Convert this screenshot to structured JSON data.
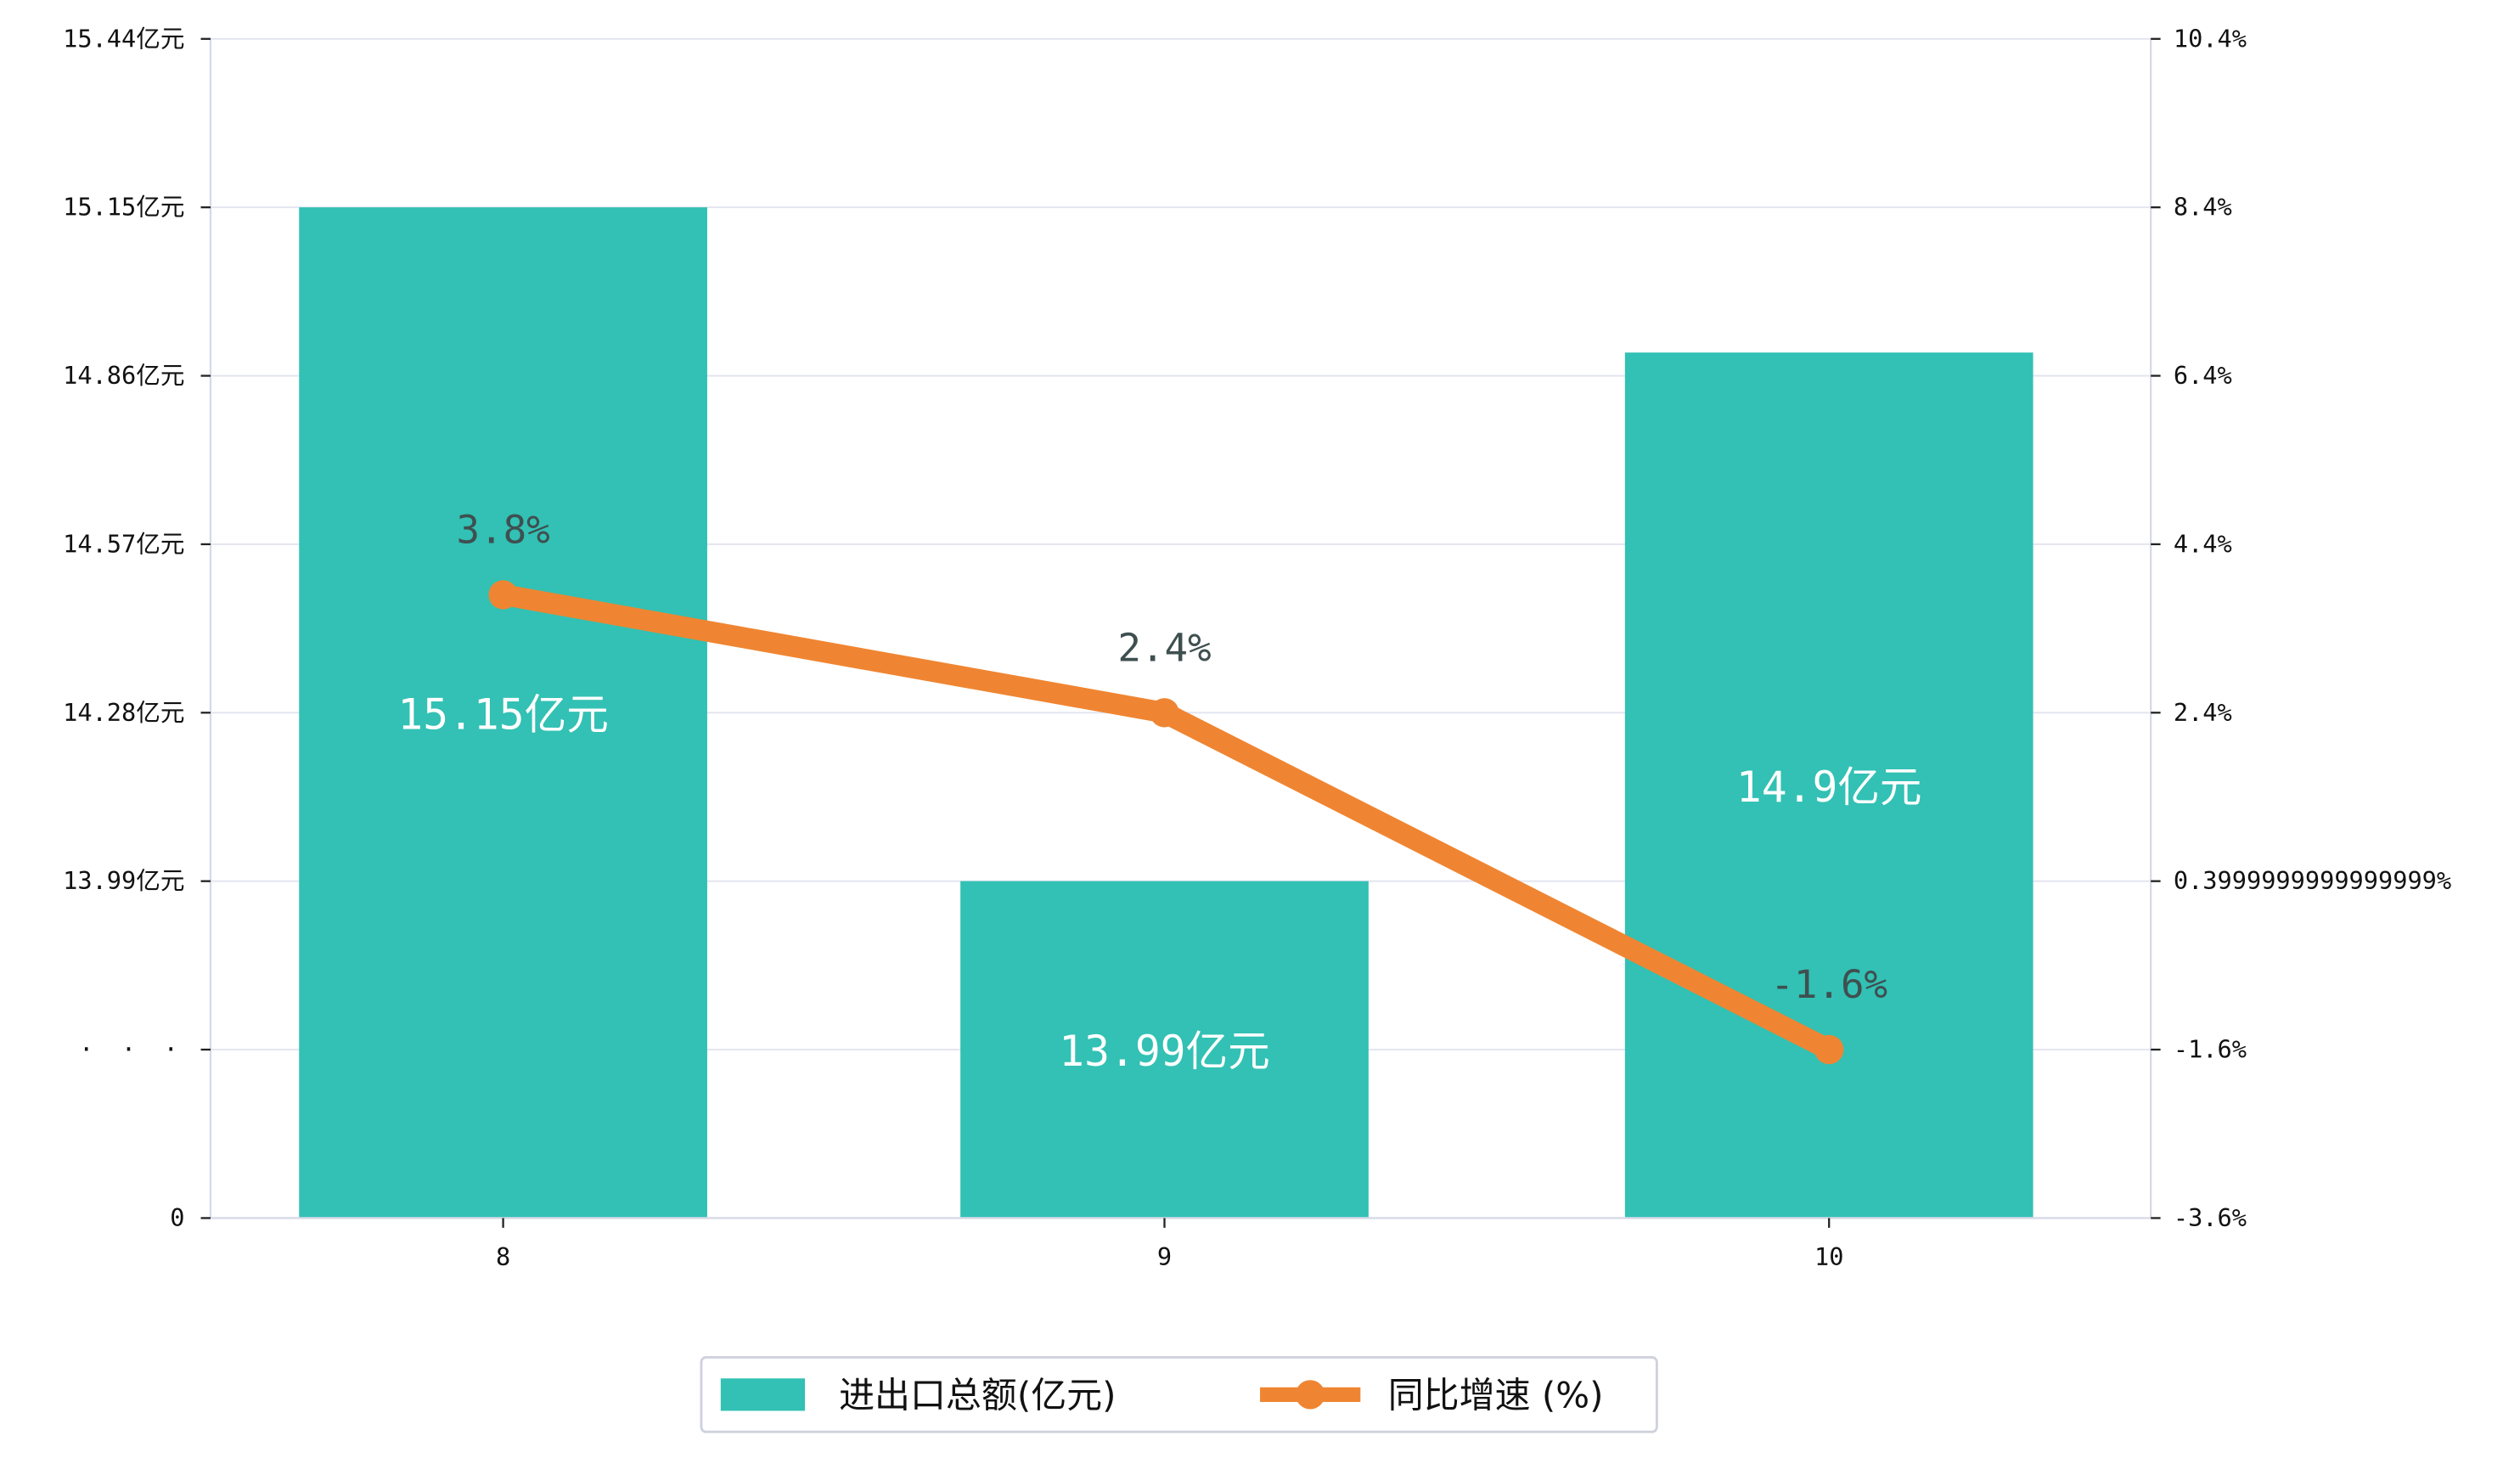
{
  "chart_data": {
    "type": "bar",
    "categories": [
      "8",
      "9",
      "10"
    ],
    "series": [
      {
        "name": "进出口总额(亿元)",
        "type": "bar",
        "axis": "left",
        "values": [
          15.15,
          13.99,
          14.9
        ],
        "value_labels": [
          "15.15亿元",
          "13.99亿元",
          "14.9亿元"
        ],
        "color": "#32c1b4"
      },
      {
        "name": "同比增速 (%)",
        "type": "line",
        "axis": "right",
        "values": [
          3.8,
          2.4,
          -1.6
        ],
        "value_labels": [
          "3.8%",
          "2.4%",
          "-1.6%"
        ],
        "color": "#ef8532"
      }
    ],
    "left_axis": {
      "ticks": [
        "0",
        "· · ·",
        "13.99亿元",
        "14.28亿元",
        "14.57亿元",
        "14.86亿元",
        "15.15亿元",
        "15.44亿元"
      ],
      "broken": true,
      "break_value": 13.7,
      "range": [
        13.7,
        15.44
      ]
    },
    "right_axis": {
      "ticks": [
        "-3.6%",
        "-1.6%",
        "0.3999999999999999%",
        "2.4%",
        "4.4%",
        "6.4%",
        "8.4%",
        "10.4%"
      ],
      "range": [
        -3.6,
        10.4
      ]
    },
    "grid": true,
    "legend": "bottom-center"
  }
}
